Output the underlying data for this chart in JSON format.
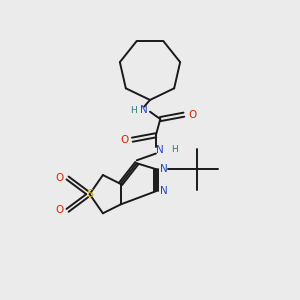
{
  "bg_color": "#ebebeb",
  "bond_color": "#1a1a1a",
  "N_color": "#2244cc",
  "O_color": "#dd2200",
  "S_color": "#ccaa00",
  "NH_color": "#2a7a7a",
  "fig_width": 3.0,
  "fig_height": 3.0,
  "dpi": 100,
  "xlim": [
    0,
    10
  ],
  "ylim": [
    0,
    10
  ]
}
